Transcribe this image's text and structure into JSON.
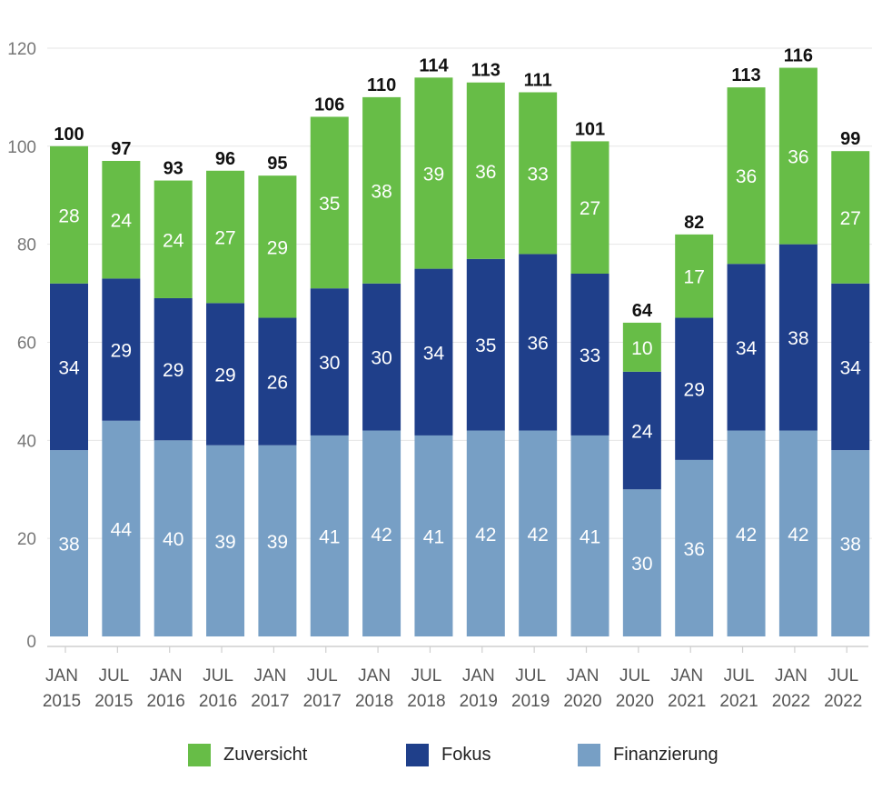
{
  "chart_data": {
    "type": "bar",
    "stacked": true,
    "title": "",
    "xlabel": "",
    "ylabel": "",
    "ylim": [
      0,
      120
    ],
    "yticks": [
      0,
      20,
      40,
      60,
      80,
      100,
      120
    ],
    "grid": true,
    "legend_position": "bottom",
    "categories": [
      [
        "JAN",
        "2015"
      ],
      [
        "JUL",
        "2015"
      ],
      [
        "JAN",
        "2016"
      ],
      [
        "JUL",
        "2016"
      ],
      [
        "JAN",
        "2017"
      ],
      [
        "JUL",
        "2017"
      ],
      [
        "JAN",
        "2018"
      ],
      [
        "JUL",
        "2018"
      ],
      [
        "JAN",
        "2019"
      ],
      [
        "JUL",
        "2019"
      ],
      [
        "JAN",
        "2020"
      ],
      [
        "JUL",
        "2020"
      ],
      [
        "JAN",
        "2021"
      ],
      [
        "JUL",
        "2021"
      ],
      [
        "JAN",
        "2022"
      ],
      [
        "JUL",
        "2022"
      ]
    ],
    "series": [
      {
        "name": "Finanzierung",
        "color": "#779fc5",
        "values": [
          38,
          44,
          40,
          39,
          39,
          41,
          42,
          41,
          42,
          42,
          41,
          30,
          36,
          42,
          42,
          38
        ]
      },
      {
        "name": "Fokus",
        "color": "#1f3f8a",
        "values": [
          34,
          29,
          29,
          29,
          26,
          30,
          30,
          34,
          35,
          36,
          33,
          24,
          29,
          34,
          38,
          34
        ]
      },
      {
        "name": "Zuversicht",
        "color": "#67bd47",
        "values": [
          28,
          24,
          24,
          27,
          29,
          35,
          38,
          39,
          36,
          33,
          27,
          10,
          17,
          36,
          36,
          27
        ]
      }
    ],
    "totals": [
      100,
      97,
      93,
      96,
      95,
      106,
      110,
      114,
      113,
      111,
      101,
      64,
      82,
      113,
      116,
      99
    ],
    "legend": [
      {
        "label": "Zuversicht",
        "color": "#67bd47"
      },
      {
        "label": "Fokus",
        "color": "#1f3f8a"
      },
      {
        "label": "Finanzierung",
        "color": "#779fc5"
      }
    ]
  }
}
